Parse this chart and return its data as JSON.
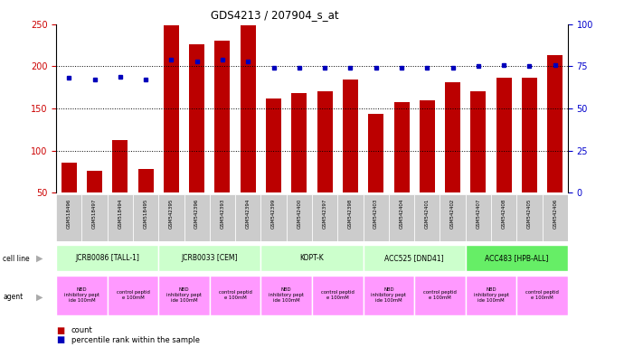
{
  "title": "GDS4213 / 207904_s_at",
  "samples": [
    "GSM518496",
    "GSM518497",
    "GSM518494",
    "GSM518495",
    "GSM542395",
    "GSM542396",
    "GSM542393",
    "GSM542394",
    "GSM542399",
    "GSM542400",
    "GSM542397",
    "GSM542398",
    "GSM542403",
    "GSM542404",
    "GSM542401",
    "GSM542402",
    "GSM542407",
    "GSM542408",
    "GSM542405",
    "GSM542406"
  ],
  "counts": [
    86,
    76,
    112,
    78,
    249,
    226,
    231,
    249,
    162,
    168,
    170,
    184,
    144,
    157,
    160,
    181,
    170,
    186,
    187,
    213
  ],
  "percentiles": [
    68,
    67,
    69,
    67,
    79,
    78,
    79,
    78,
    74,
    74,
    74,
    74,
    74,
    74,
    74,
    74,
    75,
    76,
    75,
    76
  ],
  "cell_lines": [
    {
      "label": "JCRB0086 [TALL-1]",
      "start": 0,
      "end": 4,
      "color": "#ccffcc"
    },
    {
      "label": "JCRB0033 [CEM]",
      "start": 4,
      "end": 8,
      "color": "#ccffcc"
    },
    {
      "label": "KOPT-K",
      "start": 8,
      "end": 12,
      "color": "#ccffcc"
    },
    {
      "label": "ACC525 [DND41]",
      "start": 12,
      "end": 16,
      "color": "#ccffcc"
    },
    {
      "label": "ACC483 [HPB-ALL]",
      "start": 16,
      "end": 20,
      "color": "#66ee66"
    }
  ],
  "agents": [
    {
      "label": "NBD\ninhibitory pept\nide 100mM",
      "start": 0,
      "end": 2,
      "color": "#ff99ff"
    },
    {
      "label": "control peptid\ne 100mM",
      "start": 2,
      "end": 4,
      "color": "#ff99ff"
    },
    {
      "label": "NBD\ninhibitory pept\nide 100mM",
      "start": 4,
      "end": 6,
      "color": "#ff99ff"
    },
    {
      "label": "control peptid\ne 100mM",
      "start": 6,
      "end": 8,
      "color": "#ff99ff"
    },
    {
      "label": "NBD\ninhibitory pept\nide 100mM",
      "start": 8,
      "end": 10,
      "color": "#ff99ff"
    },
    {
      "label": "control peptid\ne 100mM",
      "start": 10,
      "end": 12,
      "color": "#ff99ff"
    },
    {
      "label": "NBD\ninhibitory pept\nide 100mM",
      "start": 12,
      "end": 14,
      "color": "#ff99ff"
    },
    {
      "label": "control peptid\ne 100mM",
      "start": 14,
      "end": 16,
      "color": "#ff99ff"
    },
    {
      "label": "NBD\ninhibitory pept\nide 100mM",
      "start": 16,
      "end": 18,
      "color": "#ff99ff"
    },
    {
      "label": "control peptid\ne 100mM",
      "start": 18,
      "end": 20,
      "color": "#ff99ff"
    }
  ],
  "ylim_left": [
    50,
    250
  ],
  "ylim_right": [
    0,
    100
  ],
  "yticks_left": [
    50,
    100,
    150,
    200,
    250
  ],
  "yticks_right": [
    0,
    25,
    50,
    75,
    100
  ],
  "bar_color": "#bb0000",
  "dot_color": "#0000bb",
  "tick_label_color_left": "#cc0000",
  "tick_label_color_right": "#0000cc",
  "legend_count_color": "#bb0000",
  "legend_pct_color": "#0000bb"
}
